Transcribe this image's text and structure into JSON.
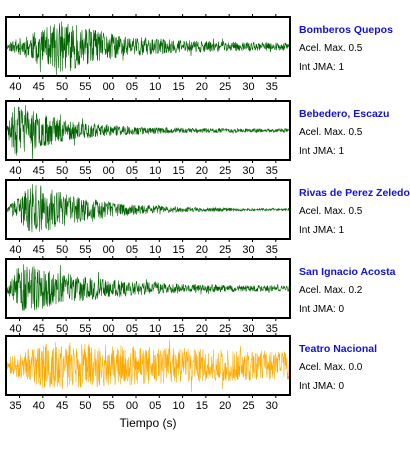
{
  "chart_data": {
    "type": "line",
    "xlabel": "Tiempo (s)",
    "accel_prefix": "Acel. Max.",
    "int_prefix": "Int JMA:",
    "panels": [
      {
        "name": "Bomberos Quepos",
        "acel_max": "0.5",
        "int_jma": "1",
        "color": "#006400",
        "tick_labels": [
          "40",
          "45",
          "50",
          "55",
          "00",
          "05",
          "10",
          "15",
          "20",
          "25",
          "30",
          "35"
        ],
        "tick_offset": 2,
        "onset": 0.0,
        "peak_at": 0.2,
        "amplitude": 0.95,
        "decay": 0.22,
        "floor": 0.12,
        "seed": 11
      },
      {
        "name": "Bebedero, Escazu",
        "acel_max": "0.5",
        "int_jma": "1",
        "color": "#006400",
        "tick_labels": [
          "40",
          "45",
          "50",
          "55",
          "00",
          "05",
          "10",
          "15",
          "20",
          "25",
          "30",
          "35"
        ],
        "tick_offset": 2,
        "onset": 0.0,
        "peak_at": 0.03,
        "amplitude": 1.0,
        "decay": 0.18,
        "floor": 0.06,
        "seed": 23
      },
      {
        "name": "Rivas de Perez Zeledon",
        "acel_max": "0.5",
        "int_jma": "1",
        "color": "#006400",
        "tick_labels": [
          "40",
          "45",
          "50",
          "55",
          "00",
          "05",
          "10",
          "15",
          "20",
          "25",
          "30",
          "35"
        ],
        "tick_offset": 2,
        "onset": 0.0,
        "peak_at": 0.1,
        "amplitude": 1.0,
        "decay": 0.2,
        "floor": 0.03,
        "seed": 37
      },
      {
        "name": "San Ignacio Acosta",
        "acel_max": "0.2",
        "int_jma": "0",
        "color": "#006400",
        "tick_labels": [
          "40",
          "45",
          "50",
          "55",
          "00",
          "05",
          "10",
          "15",
          "20",
          "25",
          "30",
          "35"
        ],
        "tick_offset": 2,
        "onset": 0.0,
        "peak_at": 0.05,
        "amplitude": 1.0,
        "decay": 0.25,
        "floor": 0.08,
        "seed": 53
      },
      {
        "name": "Teatro Nacional",
        "acel_max": "0.0",
        "int_jma": "0",
        "color": "#ffaa00",
        "tick_labels": [
          "35",
          "40",
          "45",
          "50",
          "55",
          "00",
          "05",
          "10",
          "15",
          "20",
          "25",
          "30"
        ],
        "tick_offset": 2,
        "onset": 0.0,
        "peak_at": 0.15,
        "amplitude": 0.9,
        "decay": 0.9,
        "floor": 0.3,
        "seed": 71
      }
    ]
  }
}
